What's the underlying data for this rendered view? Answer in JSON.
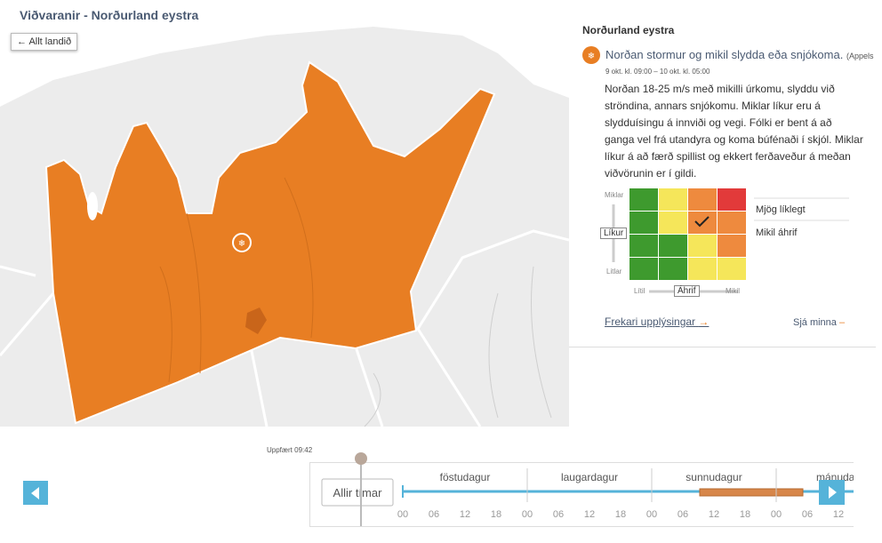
{
  "header": {
    "title": "Viðvaranir - Norðurland eystra"
  },
  "map": {
    "back_button": "Allt landið"
  },
  "panel": {
    "region": "Norðurland eystra",
    "warning_title": "Norðan stormur og mikil slydda eða snjókoma.",
    "warning_level": "(Appels",
    "period": "9 okt. kl. 09:00 – 10 okt. kl. 05:00",
    "description": "Norðan 18-25 m/s með mikilli úrkomu, slyddu við ströndina, annars snjókomu. Miklar líkur eru á slydduísingu á innviði og vegi. Fólki er bent á að ganga vel frá utandyra og koma búfénaði í skjól. Miklar líkur á að færð spillist og ekkert ferðaveður á meðan viðvörunin er í gildi.",
    "matrix": {
      "y_high": "Miklar",
      "y_label": "Líkur",
      "y_low": "Litlar",
      "x_low": "Lítil",
      "x_label": "Áhrif",
      "x_high": "Mikil",
      "likelihood": "Mjög líklegt",
      "impact": "Mikil áhrif"
    },
    "more_link": "Frekari upplýsingar",
    "less_link": "Sjá minna"
  },
  "timeline": {
    "updated": "Uppfært 09:42",
    "all_times": "Allir tímar",
    "days": [
      "föstudagur",
      "laugardagur",
      "sunnudagur",
      "mánudag"
    ],
    "hours": [
      "00",
      "06",
      "12",
      "18",
      "00",
      "06",
      "12",
      "18",
      "00",
      "06",
      "12",
      "18",
      "00",
      "06",
      "12"
    ]
  }
}
